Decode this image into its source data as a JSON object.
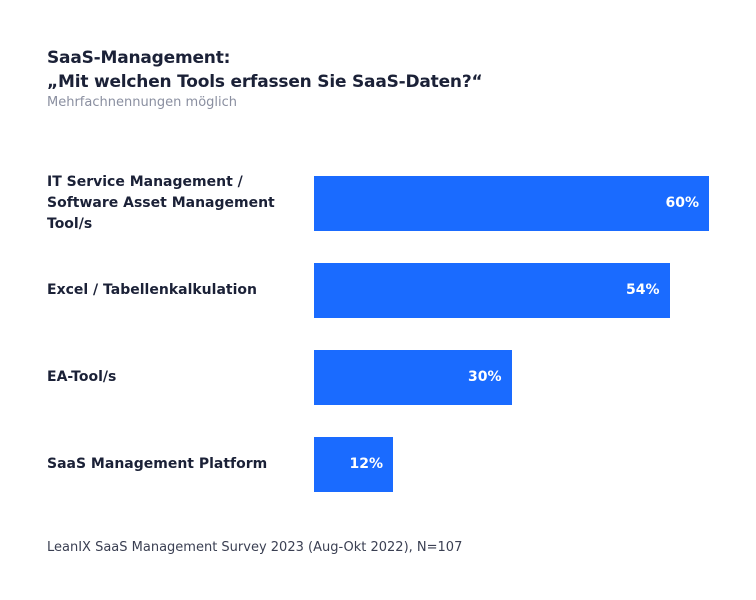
{
  "chart_data": {
    "type": "bar",
    "orientation": "horizontal",
    "title": "SaaS-Management:",
    "title_line2": "„Mit welchen Tools erfassen Sie SaaS-Daten?“",
    "subtitle": "Mehrfachnennungen möglich",
    "categories": [
      "IT Service Management / Software Asset Management Tool/s",
      "Excel / Tabellenkalkulation",
      "EA-Tool/s",
      "SaaS Management Platform"
    ],
    "values": [
      60,
      54,
      30,
      12
    ],
    "data_labels": [
      "60%",
      "54%",
      "30%",
      "12%"
    ],
    "unit": "%",
    "bar_color": "#1a6bff",
    "grid": false,
    "source": "LeanIX SaaS Management Survey 2023 (Aug-Okt 2022), N=107"
  }
}
